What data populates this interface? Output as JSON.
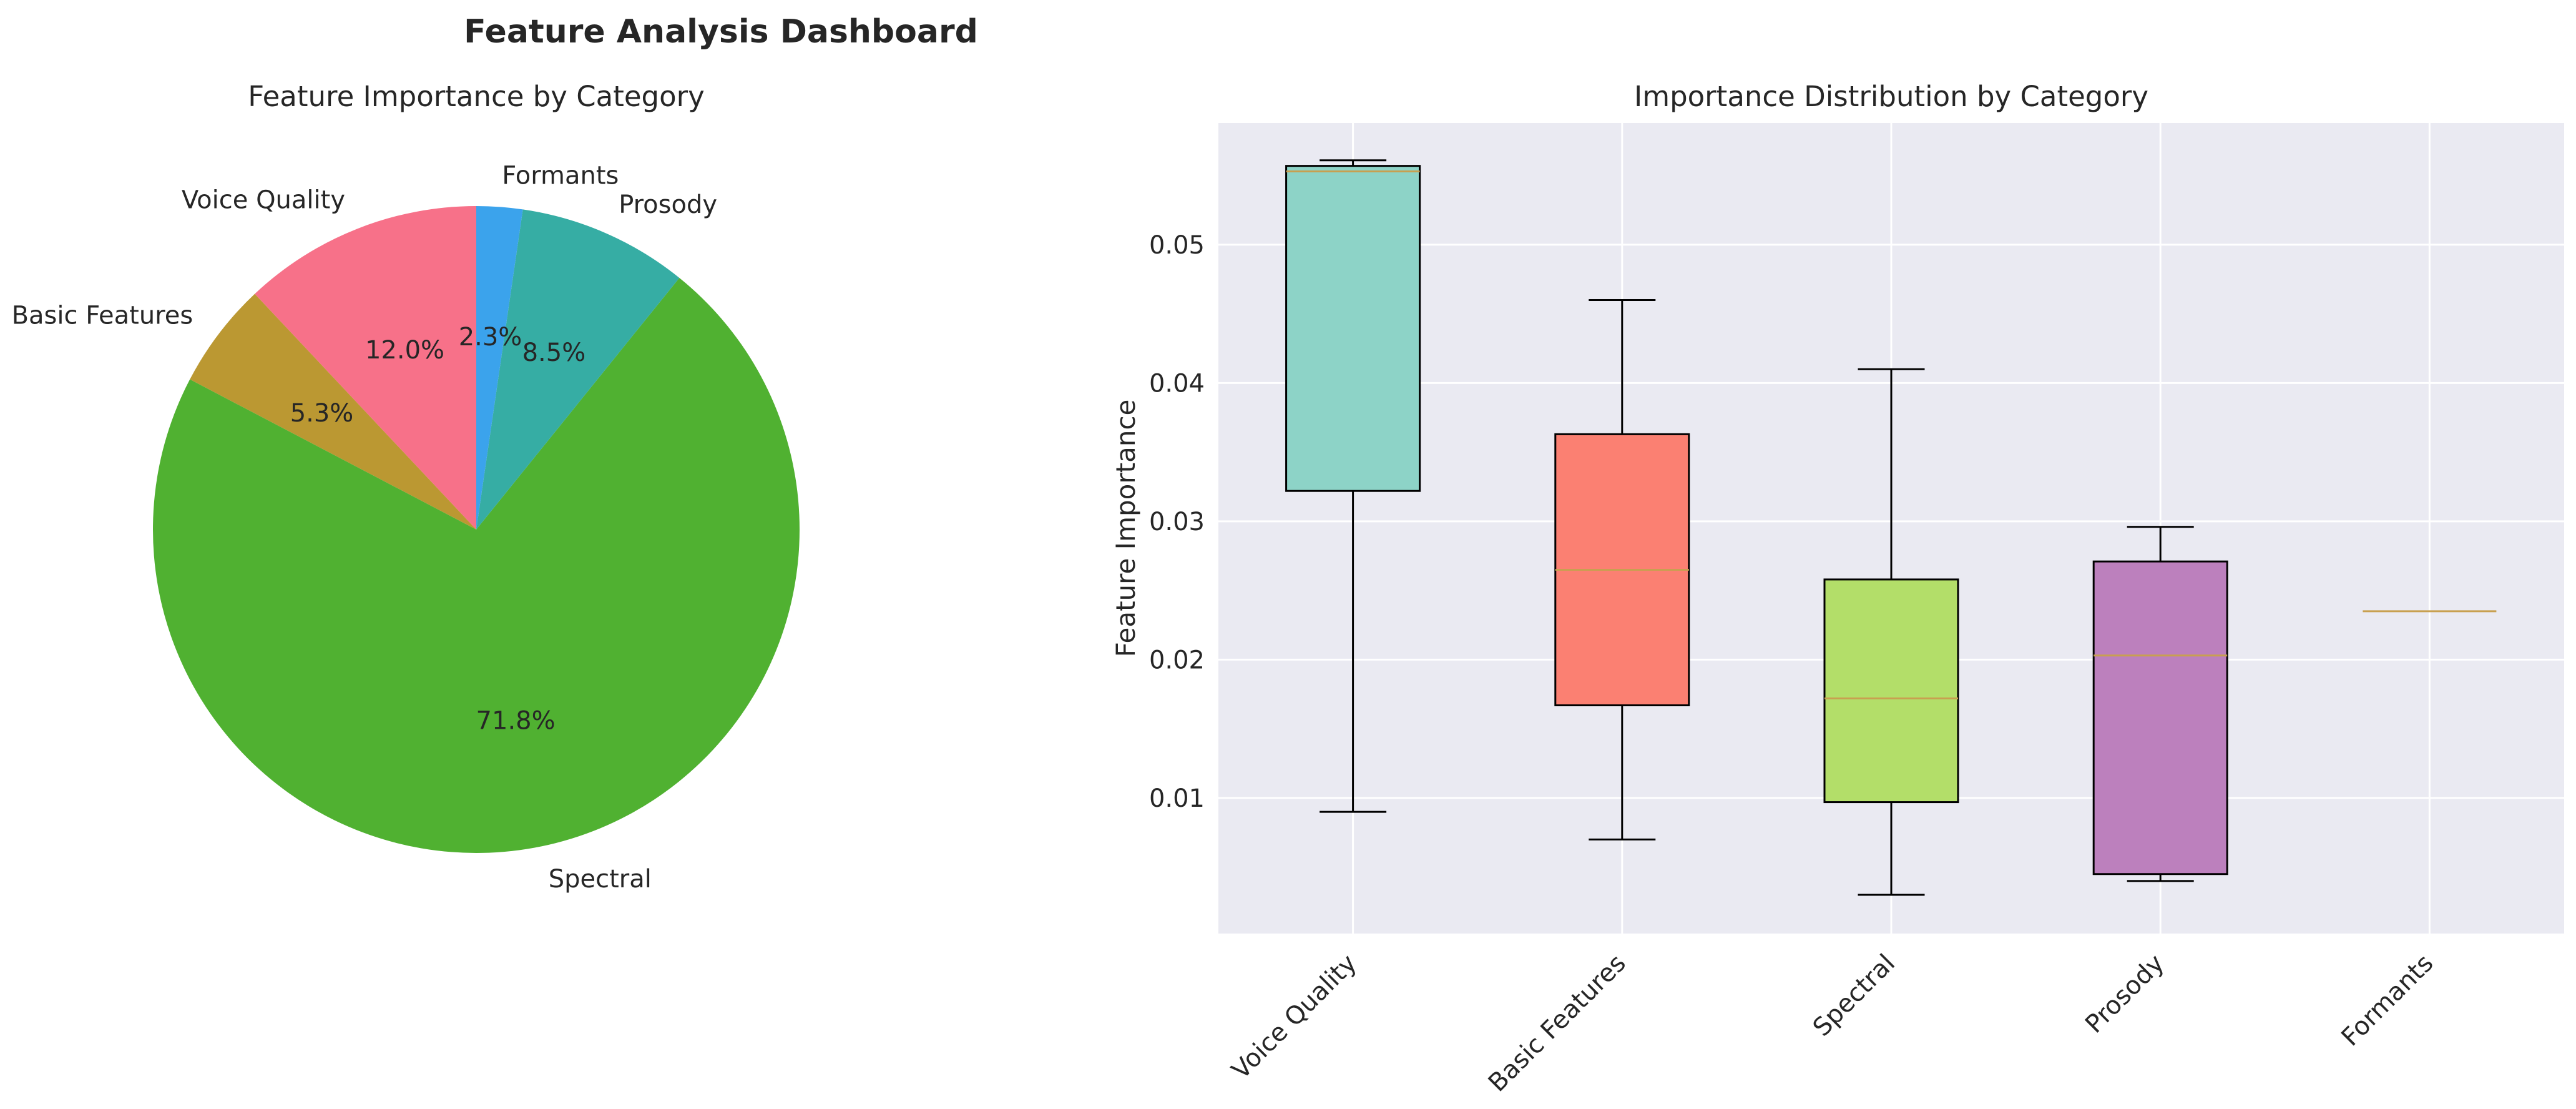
{
  "dashboard": {
    "title": "Feature Analysis Dashboard"
  },
  "chart_data": [
    {
      "type": "pie",
      "title": "Feature Importance by Category",
      "start_angle": 90,
      "direction": "counterclockwise",
      "slices": [
        {
          "label": "Voice Quality",
          "value": 12.0,
          "pct_label": "12.0%",
          "color": "#f77189"
        },
        {
          "label": "Basic Features",
          "value": 5.3,
          "pct_label": "5.3%",
          "color": "#bb9832"
        },
        {
          "label": "Spectral",
          "value": 71.8,
          "pct_label": "71.8%",
          "color": "#50b131"
        },
        {
          "label": "Prosody",
          "value": 8.5,
          "pct_label": "8.5%",
          "color": "#36ada4"
        },
        {
          "label": "Formants",
          "value": 2.3,
          "pct_label": "2.3%",
          "color": "#3ba3ec"
        }
      ]
    },
    {
      "type": "box",
      "title": "Importance Distribution by Category",
      "xlabel": "",
      "ylabel": "Feature Importance",
      "ylim": [
        0.0002,
        0.0588
      ],
      "yticks": [
        0.01,
        0.02,
        0.03,
        0.04,
        0.05
      ],
      "ytick_labels": [
        "0.01",
        "0.02",
        "0.03",
        "0.04",
        "0.05"
      ],
      "grid": true,
      "categories": [
        "Voice Quality",
        "Basic Features",
        "Spectral",
        "Prosody",
        "Formants"
      ],
      "boxes": [
        {
          "category": "Voice Quality",
          "whislo": 0.009,
          "q1": 0.0322,
          "med": 0.0553,
          "q3": 0.0557,
          "whishi": 0.0561,
          "color": "#8dd3c7"
        },
        {
          "category": "Basic Features",
          "whislo": 0.007,
          "q1": 0.0167,
          "med": 0.0265,
          "q3": 0.0363,
          "whishi": 0.046,
          "color": "#fb8072"
        },
        {
          "category": "Spectral",
          "whislo": 0.003,
          "q1": 0.0097,
          "med": 0.0172,
          "q3": 0.0258,
          "whishi": 0.041,
          "color": "#b3de69"
        },
        {
          "category": "Prosody",
          "whislo": 0.004,
          "q1": 0.0045,
          "med": 0.0203,
          "q3": 0.0271,
          "whishi": 0.0296,
          "color": "#bc80bd"
        },
        {
          "category": "Formants",
          "whislo": 0.0235,
          "q1": 0.0235,
          "med": 0.0235,
          "q3": 0.0235,
          "whishi": 0.0235,
          "color": "#80b1d3"
        }
      ],
      "median_color": "#c8a050",
      "background": "#eaeaf2"
    }
  ]
}
